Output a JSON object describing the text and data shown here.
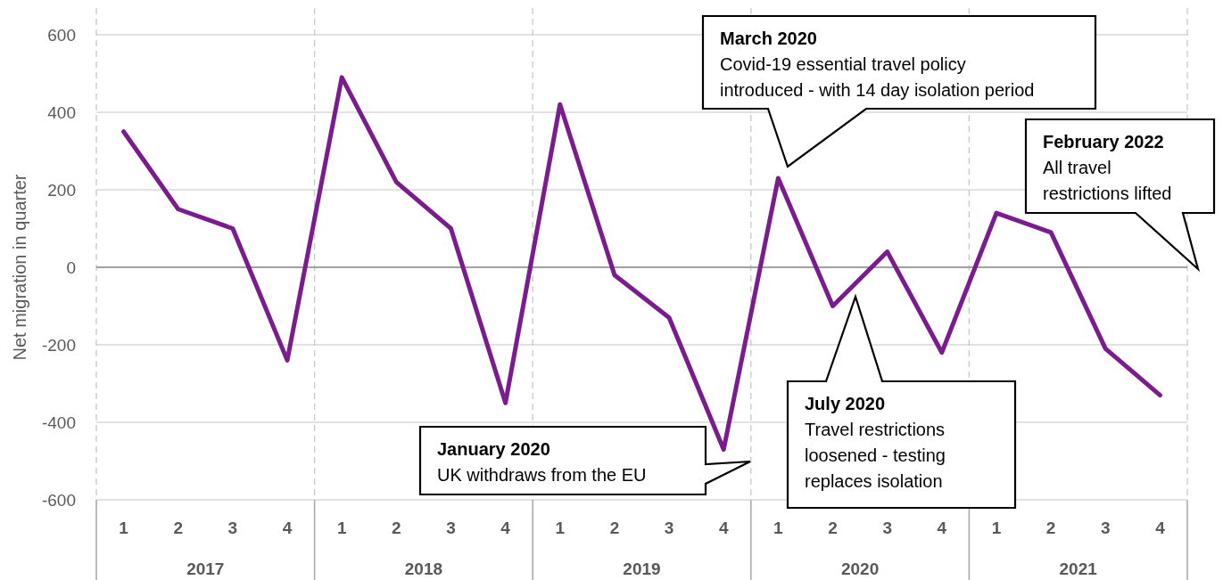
{
  "chart_data": {
    "type": "line",
    "ylabel": "Net migration in quarter",
    "categories": [
      "1",
      "2",
      "3",
      "4",
      "1",
      "2",
      "3",
      "4",
      "1",
      "2",
      "3",
      "4",
      "1",
      "2",
      "3",
      "4",
      "1",
      "2",
      "3",
      "4"
    ],
    "values": [
      350,
      150,
      100,
      -240,
      490,
      220,
      100,
      -350,
      420,
      -20,
      -130,
      -470,
      230,
      -100,
      40,
      -220,
      140,
      90,
      -210,
      -330
    ],
    "color": "#7b1c8e",
    "ylim": [
      -600,
      600
    ],
    "yticks": [
      -600,
      -400,
      -200,
      0,
      200,
      400,
      600
    ],
    "grid": true,
    "annotations": [
      "2017",
      "2018",
      "2019",
      "2020",
      "2021",
      "January 2020\nUK withdraws from the EU",
      "March 2020\nCovid-19 essential travel policy\nintroduced - with 14 day isolation period",
      "July 2020\nTravel restrictions\nloosened - testing\nreplaces isolation",
      "February 2022\nAll travel\nrestrictions lifted"
    ]
  }
}
